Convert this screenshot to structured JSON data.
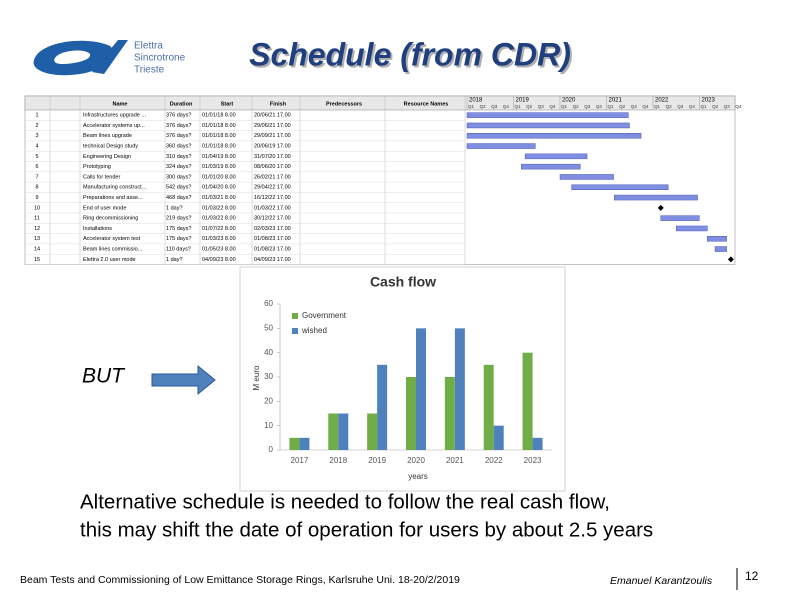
{
  "header": {
    "title": "Schedule (from CDR)",
    "logo": [
      "Elettra",
      "Sincrotrone",
      "Trieste"
    ]
  },
  "gantt": {
    "columns": [
      "Name",
      "Duration",
      "Start",
      "Finish",
      "Predecessors",
      "Resource Names"
    ],
    "years": [
      "2018",
      "2019",
      "2020",
      "2021",
      "2022",
      "2023"
    ],
    "quarters": [
      "Q1",
      "Q2",
      "Q3",
      "Q4"
    ],
    "rows": [
      [
        "1",
        "Infrastructures upgrade ...",
        "376 days?",
        "01/01/18 8.00",
        "20/06/21 17.00"
      ],
      [
        "2",
        "Accelerator systems up...",
        "376 days?",
        "01/01/18 8.00",
        "29/06/21 17.00"
      ],
      [
        "3",
        "Beam lines upgrade",
        "376 days?",
        "01/01/18 8.00",
        "29/09/21 17.00"
      ],
      [
        "4",
        "technical Design study",
        "360 days?",
        "01/01/18 8.00",
        "20/06/19 17.00"
      ],
      [
        "5",
        "Engineering Design",
        "310 days?",
        "01/04/19 8.00",
        "31/07/20 17.00"
      ],
      [
        "6",
        "Prototyping",
        "324 days?",
        "01/03/19 8.00",
        "08/06/20 17.00"
      ],
      [
        "7",
        "Calls for tender",
        "300 days?",
        "01/01/20 8.00",
        "26/02/21 17.00"
      ],
      [
        "8",
        "Manufacturing construct...",
        "542 days?",
        "01/04/20 8.00",
        "29/04/22 17.00"
      ],
      [
        "9",
        "Preparations and asse...",
        "468 days?",
        "01/03/21 8.00",
        "16/12/22 17.00"
      ],
      [
        "10",
        "End of user mode",
        "1 day?",
        "01/03/22 8.00",
        "01/03/22 17.00"
      ],
      [
        "11",
        "Ring decommissioning",
        "219 days?",
        "01/03/22 8.00",
        "30/12/22 17.00"
      ],
      [
        "12",
        "Installations",
        "175 days?",
        "01/07/22 8.00",
        "02/03/23 17.00"
      ],
      [
        "13",
        "Accelerator system test",
        "175 days?",
        "01/03/23 8.00",
        "01/08/23 17.00"
      ],
      [
        "14",
        "Beam lines commissio...",
        "110 days?",
        "01/05/23 8.00",
        "01/08/23 17.00"
      ],
      [
        "15",
        "Elettra 2.0 user mode",
        "1 day?",
        "04/09/23 8.00",
        "04/09/23 17.00"
      ]
    ]
  },
  "chart_data": {
    "type": "bar",
    "title": "Cash flow",
    "x_label": "years",
    "y_label": "M euro",
    "categories": [
      "2017",
      "2018",
      "2019",
      "2020",
      "2021",
      "2022",
      "2023"
    ],
    "series": [
      {
        "name": "Government",
        "color": "#70ad47",
        "values": [
          5,
          15,
          15,
          30,
          30,
          35,
          40
        ]
      },
      {
        "name": "wished",
        "color": "#4f81bd",
        "values": [
          5,
          15,
          35,
          50,
          50,
          10,
          5
        ]
      }
    ],
    "ylim": [
      0,
      60
    ],
    "yticks": [
      0,
      10,
      20,
      30,
      40,
      50,
      60
    ],
    "grid": false
  },
  "side_label": "BUT",
  "body": [
    "Alternative schedule is needed to follow the real cash flow,",
    "this may shift the date of operation for users by about 2.5 years"
  ],
  "footer": {
    "event": "Beam Tests and Commissioning of Low Emittance Storage Rings, Karlsruhe Uni. 18-20/2/2019",
    "author": "Emanuel Karantzoulis",
    "page": "12"
  }
}
